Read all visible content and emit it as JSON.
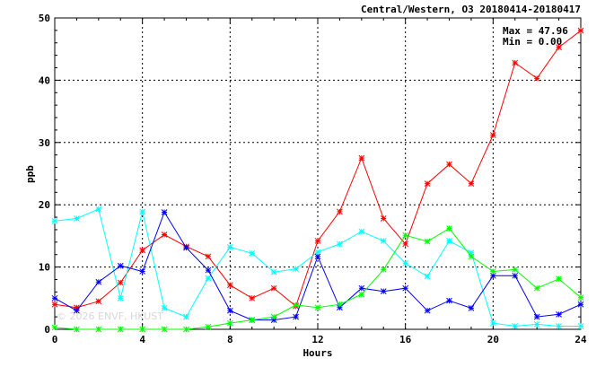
{
  "chart_data": {
    "type": "line",
    "title": "Central/Western, O3 20180414-20180417",
    "xlabel": "Hours",
    "ylabel": "ppb",
    "xlim": [
      0,
      24
    ],
    "ylim": [
      0,
      50
    ],
    "xticks": [
      "0",
      "4",
      "8",
      "12",
      "16",
      "20",
      "24"
    ],
    "yticks": [
      "0",
      "10",
      "20",
      "30",
      "40",
      "50"
    ],
    "grid": true,
    "stats": {
      "max": "Max = 47.96",
      "min": "Min =  0.00"
    },
    "watermark": "© 2026 ENVF, HKUST",
    "x": [
      0,
      1,
      2,
      3,
      4,
      5,
      6,
      7,
      8,
      9,
      10,
      11,
      12,
      13,
      14,
      15,
      16,
      17,
      18,
      19,
      20,
      21,
      22,
      23,
      24
    ],
    "series": [
      {
        "color": "#ff0000",
        "values": [
          4.0,
          3.5,
          4.5,
          7.5,
          12.7,
          15.2,
          13.3,
          11.7,
          7.1,
          5.0,
          6.6,
          3.7,
          14.2,
          18.9,
          27.5,
          17.8,
          13.7,
          23.4,
          26.5,
          23.4,
          31.2,
          42.8,
          40.3,
          45.3,
          47.96
        ]
      },
      {
        "color": "#00ffff",
        "values": [
          17.4,
          17.8,
          19.3,
          5.0,
          18.9,
          3.4,
          2.0,
          8.2,
          13.2,
          12.2,
          9.2,
          9.7,
          12.4,
          13.7,
          15.7,
          14.2,
          10.6,
          8.5,
          14.2,
          12.3,
          1.0,
          0.5,
          0.8,
          0.5,
          0.5
        ]
      },
      {
        "color": "#0000ff",
        "values": [
          5.0,
          3.0,
          7.6,
          10.2,
          9.3,
          18.8,
          13.1,
          9.5,
          3.0,
          1.5,
          1.5,
          2.0,
          11.7,
          3.5,
          6.6,
          6.1,
          6.6,
          3.0,
          4.6,
          3.4,
          8.6,
          8.6,
          2.0,
          2.4,
          4.0
        ]
      },
      {
        "color": "#00ff00",
        "values": [
          0.3,
          0.0,
          0.0,
          0.0,
          0.0,
          0.0,
          0.0,
          0.4,
          1.0,
          1.5,
          2.0,
          3.9,
          3.5,
          4.0,
          5.6,
          9.6,
          15.1,
          14.1,
          16.2,
          11.7,
          9.3,
          9.6,
          6.6,
          8.1,
          5.1
        ]
      }
    ]
  }
}
